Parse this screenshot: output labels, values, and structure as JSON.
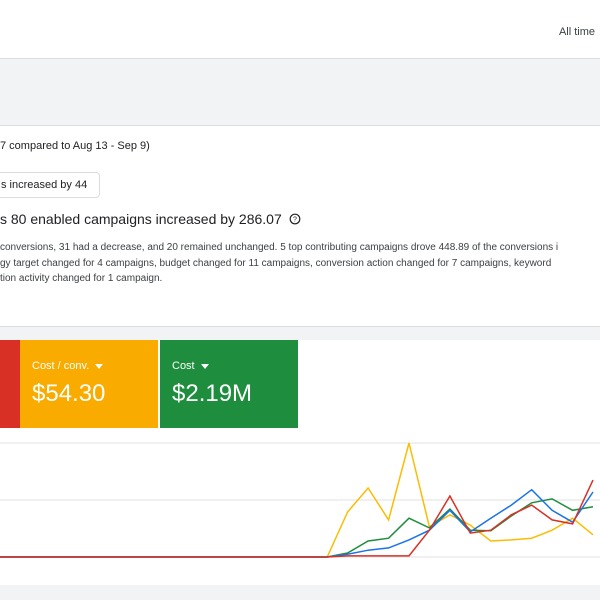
{
  "header": {
    "date_range": "All time"
  },
  "insight": {
    "period": "7 compared to Aug 13 - Sep 9)",
    "chip": "s increased by 44",
    "headline": "s 80 enabled campaigns increased by 286.07",
    "details": [
      "conversions, 31 had a decrease, and 20 remained unchanged. 5 top contributing campaigns drove 448.89 of the conversions i",
      "gy target changed for 4 campaigns, budget changed for 11 campaigns, conversion action changed for 7 campaigns, keyword",
      "tion activity changed for 1 campaign."
    ]
  },
  "scorecards": [
    {
      "label": "Cost / conv.",
      "value": "$54.30",
      "color": "#f9ab00"
    },
    {
      "label": "Cost",
      "value": "$2.19M",
      "color": "#1e8e3e"
    }
  ],
  "chart_data": {
    "type": "line",
    "categories": [
      null,
      null,
      null,
      null,
      null,
      null,
      null,
      null,
      null,
      null,
      null,
      null,
      null,
      null,
      null,
      null,
      null,
      null,
      null,
      null,
      null,
      null,
      null,
      null,
      null,
      null,
      null,
      null,
      null,
      null
    ],
    "ylim": [
      0,
      2
    ],
    "yticks": [
      0,
      1,
      2
    ],
    "grid": true,
    "series": [
      {
        "color": "#fbbc04",
        "values": [
          0,
          0,
          0,
          0,
          0,
          0,
          0,
          0,
          0,
          0,
          0,
          0,
          0,
          0,
          0,
          0,
          0,
          0.79,
          1.21,
          0.65,
          2.0,
          0.53,
          0.74,
          0.56,
          0.28,
          0.3,
          0.33,
          0.47,
          0.68,
          0.39
        ]
      },
      {
        "color": "#1e8e3e",
        "values": [
          0,
          0,
          0,
          0,
          0,
          0,
          0,
          0,
          0,
          0,
          0,
          0,
          0,
          0,
          0,
          0,
          0,
          0.07,
          0.28,
          0.33,
          0.68,
          0.51,
          0.84,
          0.47,
          0.46,
          0.72,
          0.95,
          1.02,
          0.82,
          0.88
        ]
      },
      {
        "color": "#1a73e8",
        "values": [
          0,
          0,
          0,
          0,
          0,
          0,
          0,
          0,
          0,
          0,
          0,
          0,
          0,
          0,
          0,
          0,
          0,
          0.05,
          0.12,
          0.16,
          0.3,
          0.47,
          0.82,
          0.44,
          0.68,
          0.91,
          1.18,
          0.82,
          0.61,
          1.14
        ]
      },
      {
        "color": "#d93025",
        "values": [
          0,
          0,
          0,
          0,
          0,
          0,
          0,
          0,
          0,
          0,
          0,
          0,
          0,
          0,
          0,
          0,
          0,
          0.02,
          0.02,
          0.02,
          0.02,
          0.47,
          1.07,
          0.42,
          0.47,
          0.74,
          0.91,
          0.65,
          0.58,
          1.35
        ]
      }
    ]
  }
}
